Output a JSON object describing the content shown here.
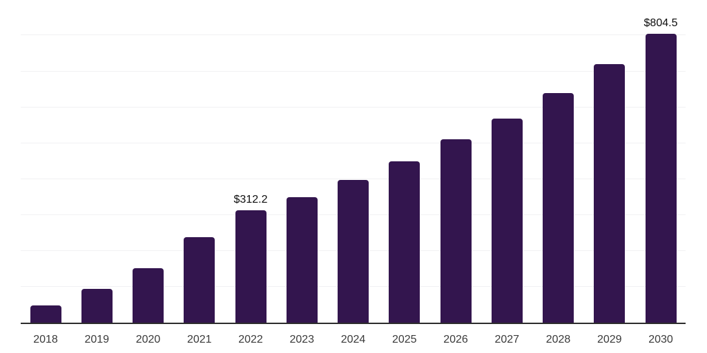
{
  "chart_data": {
    "type": "bar",
    "title": "",
    "xlabel": "",
    "ylabel": "",
    "categories": [
      "2018",
      "2019",
      "2020",
      "2021",
      "2022",
      "2023",
      "2024",
      "2025",
      "2026",
      "2027",
      "2028",
      "2029",
      "2030"
    ],
    "values": [
      48,
      94,
      151,
      239,
      312.2,
      350,
      398,
      450,
      510,
      569,
      640,
      720,
      804.5
    ],
    "data_labels": [
      null,
      null,
      null,
      null,
      "$312.2",
      null,
      null,
      null,
      null,
      null,
      null,
      null,
      "$804.5"
    ],
    "ylim": [
      0,
      900
    ],
    "gridline_step": 100,
    "grid": true,
    "legend": false,
    "colors": {
      "bar": "#33154E",
      "gridline": "#f1f1f3",
      "axis_line": "#2d2d2d",
      "tick_label": "#3a3a3a",
      "value_label": "#0d0d0d",
      "background": "#ffffff"
    }
  }
}
